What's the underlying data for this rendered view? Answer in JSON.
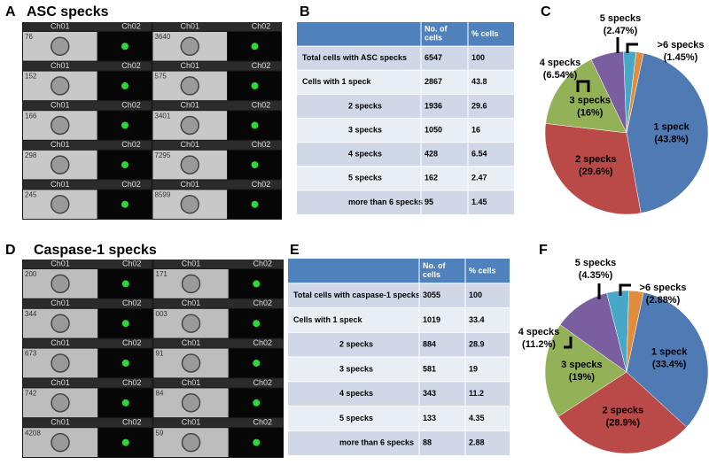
{
  "panel_labels": [
    "A",
    "B",
    "C",
    "D",
    "E",
    "F"
  ],
  "channels": [
    "Ch01",
    "Ch02"
  ],
  "grids": [
    {
      "title": "ASC specks",
      "left_ids": [
        "76",
        "152",
        "166",
        "298",
        "245"
      ],
      "right_ids": [
        "3640",
        "575",
        "3401",
        "7295",
        "8599"
      ]
    },
    {
      "title": "Caspase-1 specks",
      "left_ids": [
        "200",
        "344",
        "673",
        "742",
        "4208"
      ],
      "right_ids": [
        "171",
        "003",
        "91",
        "84",
        "59"
      ]
    }
  ],
  "tables": [
    {
      "columns": [
        "No. of cells",
        "% cells"
      ],
      "rows": [
        [
          "Total cells with ASC specks",
          6547,
          100
        ],
        [
          "Cells with 1 speck",
          2867,
          43.8
        ],
        [
          "2 specks",
          1936,
          29.6
        ],
        [
          "3 specks",
          1050,
          16
        ],
        [
          "4 specks",
          428,
          6.54
        ],
        [
          "5 specks",
          162,
          2.47
        ],
        [
          "more than 6 specks",
          95,
          1.45
        ]
      ]
    },
    {
      "columns": [
        "No. of cells",
        "% cells"
      ],
      "rows": [
        [
          "Total cells with caspase-1 specks",
          3055,
          100
        ],
        [
          "Cells with 1 speck",
          1019,
          33.4
        ],
        [
          "2 specks",
          884,
          28.9
        ],
        [
          "3 specks",
          581,
          19
        ],
        [
          "4 specks",
          343,
          11.2
        ],
        [
          "5 specks",
          133,
          4.35
        ],
        [
          "more than 6 specks",
          88,
          2.88
        ]
      ]
    }
  ],
  "chart_data": [
    {
      "type": "pie",
      "categories": [
        "1 speck",
        "2 specks",
        "3 specks",
        "4 specks",
        "5 specks",
        ">6 specks"
      ],
      "values": [
        43.8,
        29.6,
        16,
        6.54,
        2.47,
        1.45
      ],
      "value_labels": [
        "(43.8%)",
        "(29.6%)",
        "(16%)",
        "(6.54%)",
        "(2.47%)",
        "(1.45%)"
      ],
      "colors": [
        "#4f7ab4",
        "#b94a48",
        "#93b157",
        "#7a5ea0",
        "#46a8c6",
        "#e08c3c"
      ]
    },
    {
      "type": "pie",
      "categories": [
        "1 speck",
        "2 specks",
        "3 specks",
        "4 specks",
        "5 specks",
        ">6 specks"
      ],
      "values": [
        33.4,
        28.9,
        19,
        11.2,
        4.35,
        2.88
      ],
      "value_labels": [
        "(33.4%)",
        "(28.9%)",
        "(19%)",
        "(11.2%)",
        "(4.35%)",
        "(2.88%)"
      ],
      "colors": [
        "#4f7ab4",
        "#b94a48",
        "#93b157",
        "#7a5ea0",
        "#46a8c6",
        "#e08c3c"
      ]
    }
  ]
}
